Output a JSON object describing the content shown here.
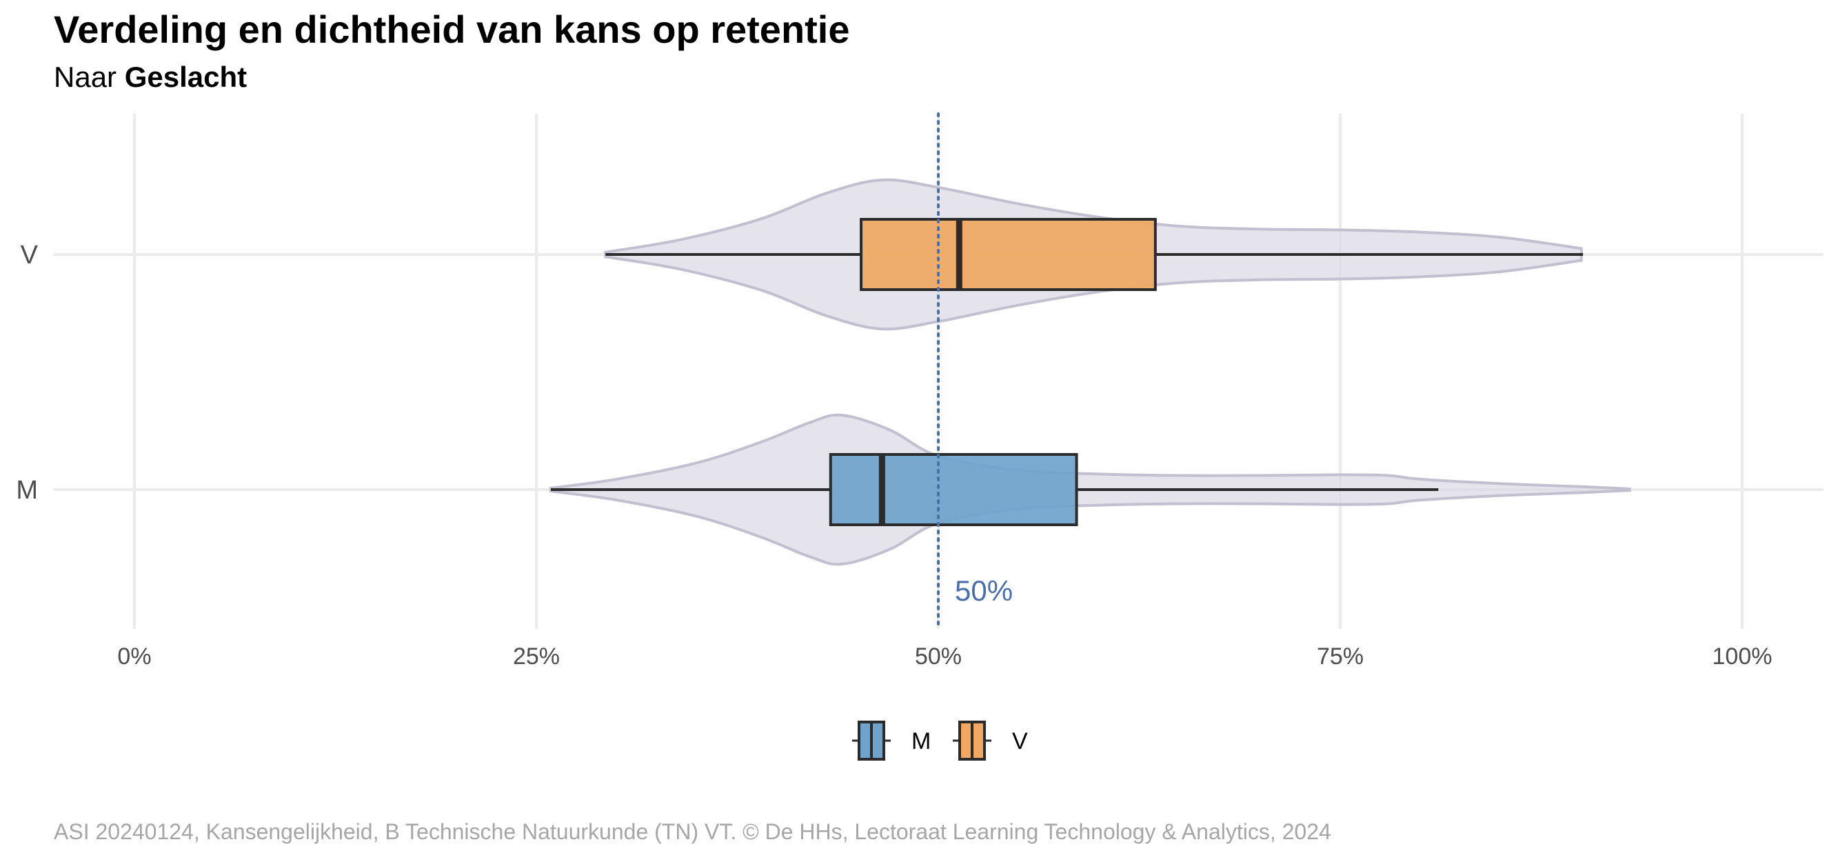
{
  "title": "Verdeling en dichtheid van kans op retentie",
  "subtitle": {
    "prefix": "Naar",
    "emphasis": "Geslacht"
  },
  "caption": "ASI 20240124, Kansengelijkheid, B Technische Natuurkunde (TN) VT. © De HHs, Lectoraat Learning Technology & Analytics, 2024",
  "colors": {
    "M": "#6fa3cb",
    "V": "#f0a862",
    "violin": "#dcdae4",
    "violin_stroke": "#c2c0d0",
    "reference": "#4a6fa8",
    "reference_label": "#4a6fa8",
    "grid": "#ebebeb",
    "box_stroke": "#2b2b2b"
  },
  "chart_data": {
    "type": "boxplot-violin",
    "orientation": "horizontal",
    "xlim": [
      0,
      1
    ],
    "xticks": [
      {
        "value": 0,
        "label": "0%"
      },
      {
        "value": 0.25,
        "label": "25%"
      },
      {
        "value": 0.5,
        "label": "50%"
      },
      {
        "value": 0.75,
        "label": "75%"
      },
      {
        "value": 1,
        "label": "100%"
      }
    ],
    "categories": [
      "V",
      "M"
    ],
    "reference_line": {
      "value": 0.5,
      "label": "50%",
      "style": "dotted"
    },
    "series": [
      {
        "name": "V",
        "box": {
          "whisker_low": 0.293,
          "q1": 0.452,
          "median": 0.513,
          "q3": 0.635,
          "whisker_high": 0.901
        },
        "violin": {
          "x": [
            0.293,
            0.34,
            0.39,
            0.43,
            0.465,
            0.5,
            0.55,
            0.6,
            0.65,
            0.7,
            0.75,
            0.8,
            0.85,
            0.9
          ],
          "density": [
            0.03,
            0.2,
            0.48,
            0.82,
            1.0,
            0.9,
            0.68,
            0.5,
            0.38,
            0.34,
            0.33,
            0.3,
            0.23,
            0.08
          ]
        }
      },
      {
        "name": "M",
        "box": {
          "whisker_low": 0.259,
          "q1": 0.433,
          "median": 0.465,
          "q3": 0.586,
          "whisker_high": 0.811
        },
        "violin": {
          "x": [
            0.259,
            0.3,
            0.35,
            0.39,
            0.42,
            0.44,
            0.47,
            0.5,
            0.55,
            0.6,
            0.65,
            0.7,
            0.75,
            0.78,
            0.8,
            0.85,
            0.9,
            0.93
          ],
          "density": [
            0.02,
            0.14,
            0.36,
            0.64,
            0.9,
            1.0,
            0.8,
            0.45,
            0.26,
            0.21,
            0.19,
            0.19,
            0.2,
            0.19,
            0.14,
            0.08,
            0.04,
            0.01
          ]
        }
      }
    ],
    "legend": {
      "position": "bottom",
      "entries": [
        "M",
        "V"
      ]
    }
  }
}
